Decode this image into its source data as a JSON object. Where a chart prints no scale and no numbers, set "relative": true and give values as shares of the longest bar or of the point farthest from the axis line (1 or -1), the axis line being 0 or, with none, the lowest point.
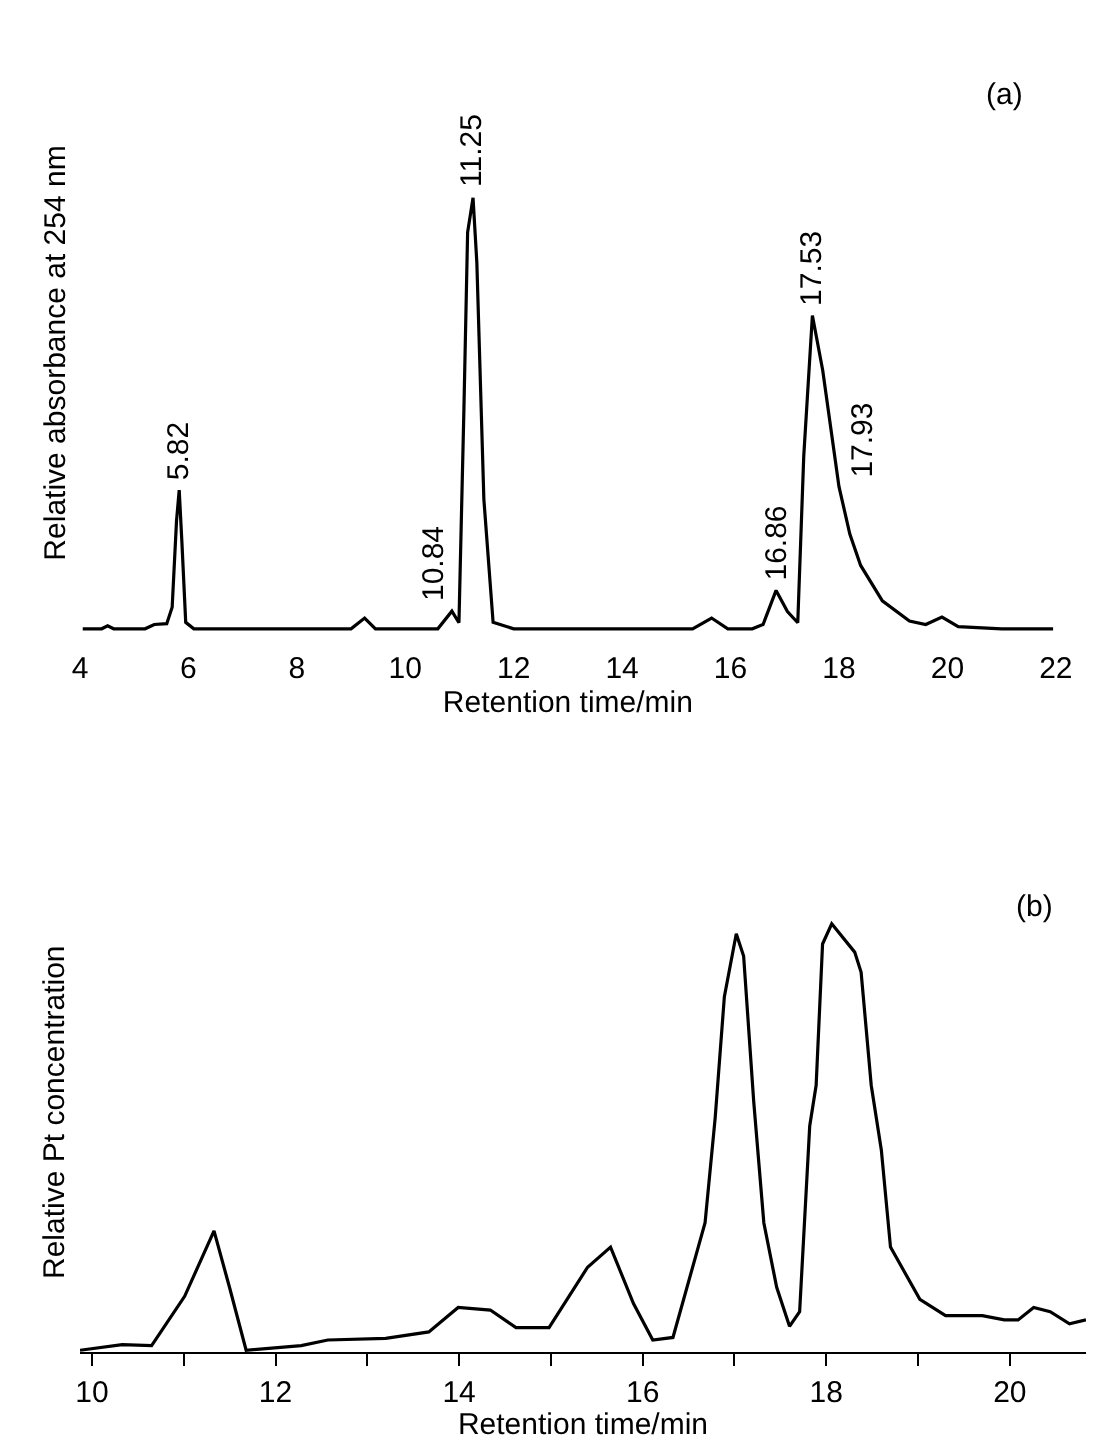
{
  "chart_data": [
    {
      "type": "line",
      "relative": true,
      "xlabel": "Retention time/min",
      "ylabel": "Relative absorbance at 254 nm",
      "xlim": [
        4,
        22
      ],
      "xticks": [
        4,
        6,
        8,
        10,
        12,
        14,
        16,
        18,
        20,
        22
      ],
      "tick_labels": "x",
      "marker": "none",
      "line_style": "solid",
      "series": [
        {
          "color": "#000000",
          "x": [
            4.05,
            4.4,
            4.51,
            4.62,
            5.2,
            5.37,
            5.6,
            5.7,
            5.78,
            5.83,
            5.88,
            5.95,
            6.1,
            7,
            8,
            9.0,
            9.25,
            9.45,
            10,
            10.6,
            10.86,
            10.99,
            11.08,
            11.15,
            11.25,
            11.32,
            11.45,
            11.62,
            12,
            13,
            14,
            15.3,
            15.65,
            15.95,
            16.4,
            16.6,
            16.84,
            17.05,
            17.24,
            17.35,
            17.51,
            17.7,
            18.0,
            18.2,
            18.4,
            18.8,
            19.3,
            19.6,
            19.9,
            20.2,
            21,
            21.95
          ],
          "values": [
            0,
            0,
            0.007,
            0,
            0,
            0.01,
            0.012,
            0.05,
            0.25,
            0.322,
            0.2,
            0.015,
            0,
            0,
            0,
            0,
            0.025,
            0,
            0,
            0,
            0.041,
            0.014,
            0.5,
            0.92,
            1.0,
            0.85,
            0.3,
            0.015,
            0,
            0,
            0,
            0,
            0.025,
            0,
            0,
            0.01,
            0.089,
            0.04,
            0.014,
            0.4,
            0.727,
            0.6,
            0.33,
            0.22,
            0.147,
            0.065,
            0.018,
            0.01,
            0.027,
            0.005,
            0,
            0
          ]
        }
      ],
      "annotations": [
        {
          "text": "5.82",
          "x": 5.83,
          "y": 0.322
        },
        {
          "text": "10.84",
          "x": 10.86,
          "y": 0.041
        },
        {
          "text": "11.25",
          "x": 11.25,
          "y": 1.0
        },
        {
          "text": "16.86",
          "x": 16.84,
          "y": 0.089
        },
        {
          "text": "17.53",
          "x": 17.51,
          "y": 0.727
        },
        {
          "text": "17.93",
          "x": 18.0,
          "y": 0.33
        },
        "(a)"
      ]
    },
    {
      "type": "line",
      "relative": true,
      "xlabel": "Retention time/min",
      "ylabel": "Relative Pt concentration",
      "xlim": [
        9.87,
        20.83
      ],
      "xticks": [
        10,
        {
          "value": 11,
          "label": null
        },
        12,
        {
          "value": 13,
          "label": null
        },
        14,
        {
          "value": 15,
          "label": null
        },
        16,
        {
          "value": 17,
          "label": null
        },
        18,
        {
          "value": 19,
          "label": null
        },
        20
      ],
      "tick_labels": "x",
      "marker": "none",
      "line_style": "solid",
      "series": [
        {
          "color": "#000000",
          "x": [
            9.87,
            10.33,
            10.65,
            11.01,
            11.33,
            11.5,
            11.68,
            12.28,
            12.57,
            13.2,
            13.67,
            13.99,
            14.34,
            14.62,
            14.98,
            15.4,
            15.65,
            15.9,
            16.11,
            16.33,
            16.68,
            16.79,
            16.89,
            17.02,
            17.1,
            17.21,
            17.32,
            17.46,
            17.6,
            17.71,
            17.82,
            17.89,
            17.96,
            18.06,
            18.31,
            18.38,
            18.49,
            18.6,
            18.7,
            19.02,
            19.3,
            19.7,
            19.94,
            20.09,
            20.26,
            20.44,
            20.65,
            20.83
          ],
          "values": [
            0.004,
            0.017,
            0.015,
            0.13,
            0.283,
            0.15,
            0.004,
            0.015,
            0.028,
            0.032,
            0.047,
            0.104,
            0.098,
            0.057,
            0.057,
            0.198,
            0.245,
            0.113,
            0.028,
            0.034,
            0.302,
            0.547,
            0.83,
            0.977,
            0.925,
            0.585,
            0.302,
            0.151,
            0.06,
            0.094,
            0.528,
            0.623,
            0.953,
            1.0,
            0.934,
            0.887,
            0.623,
            0.472,
            0.245,
            0.123,
            0.085,
            0.085,
            0.075,
            0.075,
            0.104,
            0.094,
            0.066,
            0.075
          ]
        }
      ],
      "annotations": [
        "(b)"
      ]
    }
  ]
}
